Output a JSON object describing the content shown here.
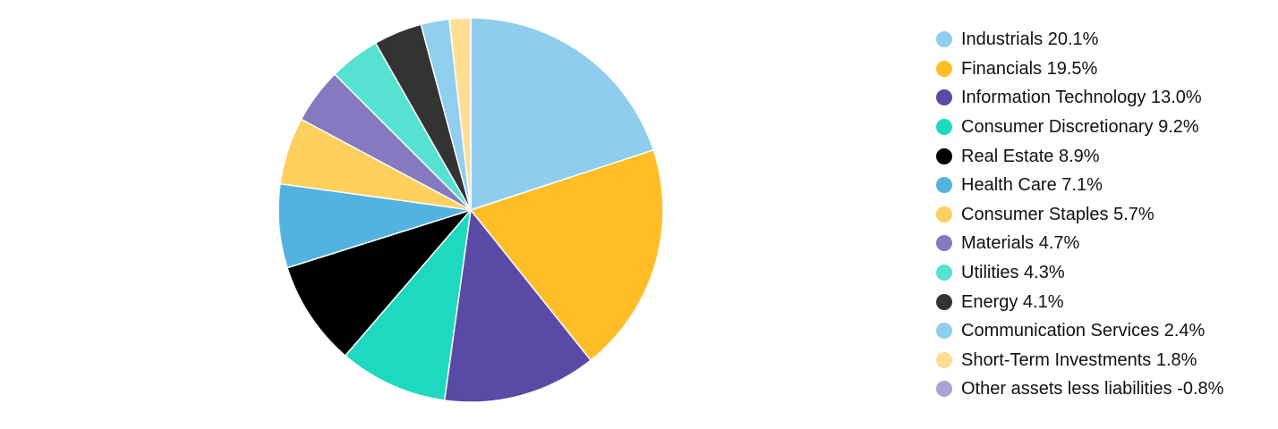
{
  "chart_data": {
    "type": "pie",
    "title": "",
    "legend_position": "right",
    "slices": [
      {
        "label": "Industrials 20.1%",
        "name": "Industrials",
        "value": 20.1,
        "color": "#8ECDED"
      },
      {
        "label": "Financials 19.5%",
        "name": "Financials",
        "value": 19.5,
        "color": "#FFBE28"
      },
      {
        "label": "Information Technology 13.0%",
        "name": "Information Technology",
        "value": 13.0,
        "color": "#5A4AA5"
      },
      {
        "label": "Consumer Discretionary 9.2%",
        "name": "Consumer Discretionary",
        "value": 9.2,
        "color": "#1DD9C0"
      },
      {
        "label": "Real Estate 8.9%",
        "name": "Real Estate",
        "value": 8.9,
        "color": "#000000"
      },
      {
        "label": "Health Care 7.1%",
        "name": "Health Care",
        "value": 7.1,
        "color": "#53B3E0"
      },
      {
        "label": "Consumer Staples 5.7%",
        "name": "Consumer Staples",
        "value": 5.7,
        "color": "#FFD05E"
      },
      {
        "label": "Materials 4.7%",
        "name": "Materials",
        "value": 4.7,
        "color": "#8679C0"
      },
      {
        "label": "Utilities 4.3%",
        "name": "Utilities",
        "value": 4.3,
        "color": "#55E2D0"
      },
      {
        "label": "Energy 4.1%",
        "name": "Energy",
        "value": 4.1,
        "color": "#333333"
      },
      {
        "label": "Communication Services 2.4%",
        "name": "Communication Services",
        "value": 2.4,
        "color": "#90CEEE"
      },
      {
        "label": "Short-Term Investments 1.8%",
        "name": "Short-Term Investments",
        "value": 1.8,
        "color": "#FFDE92"
      },
      {
        "label": "Other assets less liabilities -0.8%",
        "name": "Other assets less liabilities",
        "value": -0.8,
        "color": "#A9A2D4"
      }
    ]
  }
}
